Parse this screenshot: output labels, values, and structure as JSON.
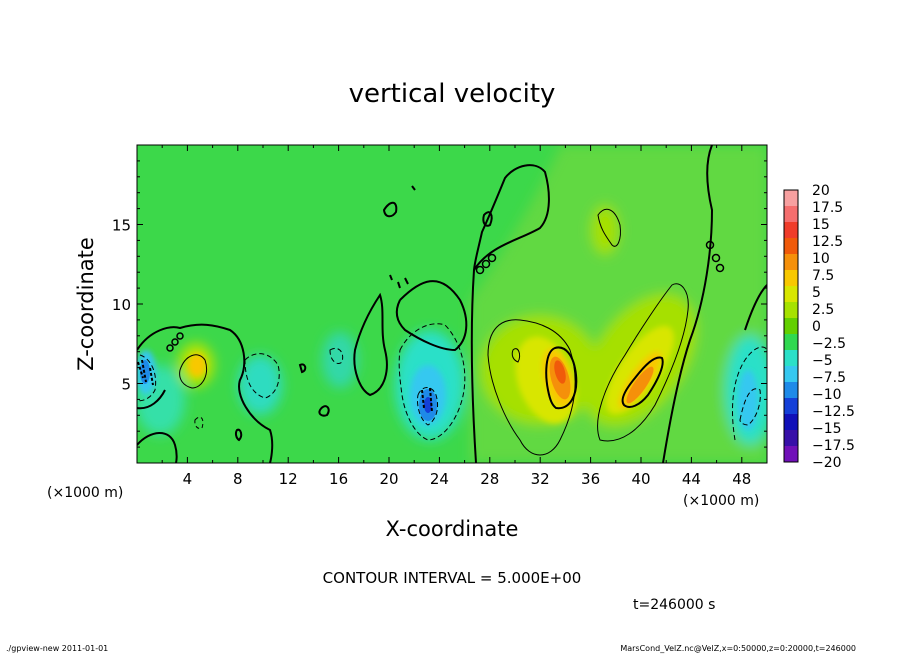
{
  "chart_data": {
    "type": "heatmap",
    "title": "vertical velocity",
    "xlabel": "X-coordinate",
    "ylabel": "Z-coordinate",
    "x_unit_left": "(×1000 m)",
    "x_unit_right": "(×1000 m)",
    "xlim": [
      0,
      50
    ],
    "ylim": [
      0,
      20
    ],
    "x_ticks": [
      4,
      8,
      12,
      16,
      20,
      24,
      28,
      32,
      36,
      40,
      44,
      48
    ],
    "y_ticks": [
      5,
      10,
      15
    ],
    "colorbar": {
      "levels": [
        "20",
        "17.5",
        "15",
        "12.5",
        "10",
        "7.5",
        "5",
        "2.5",
        "0",
        "−2.5",
        "−5",
        "−7.5",
        "−10",
        "−12.5",
        "−15",
        "−17.5",
        "−20"
      ],
      "colors": [
        "#f7a0a0",
        "#f56e6e",
        "#f03c2a",
        "#f05a0a",
        "#f5900a",
        "#f8c800",
        "#d8e600",
        "#a6e200",
        "#63d000",
        "#30d850",
        "#2be0c8",
        "#36c8f0",
        "#1e8ae8",
        "#1440d8",
        "#1010b8",
        "#3810a8",
        "#7010b8"
      ]
    },
    "features": [
      {
        "kind": "updraft",
        "x": 33,
        "z": 6,
        "value": 15
      },
      {
        "kind": "updraft",
        "x": 39.5,
        "z": 5,
        "value": 12.5
      },
      {
        "kind": "updraft",
        "x": 5,
        "z": 6,
        "value": 7.5
      },
      {
        "kind": "downdraft",
        "x": 23,
        "z": 4,
        "value": -12.5
      },
      {
        "kind": "downdraft",
        "x": 1,
        "z": 5.5,
        "value": -10
      },
      {
        "kind": "downdraft",
        "x": 49,
        "z": 4,
        "value": -7.5
      }
    ],
    "annotation": "CONTOUR INTERVAL = 5.000E+00",
    "time_label": "t=246000 s"
  },
  "footer": {
    "left": "./gpview-new   2011-01-01",
    "right": "MarsCond_VelZ.nc@VelZ,x=0:50000,z=0:20000,t=246000"
  }
}
